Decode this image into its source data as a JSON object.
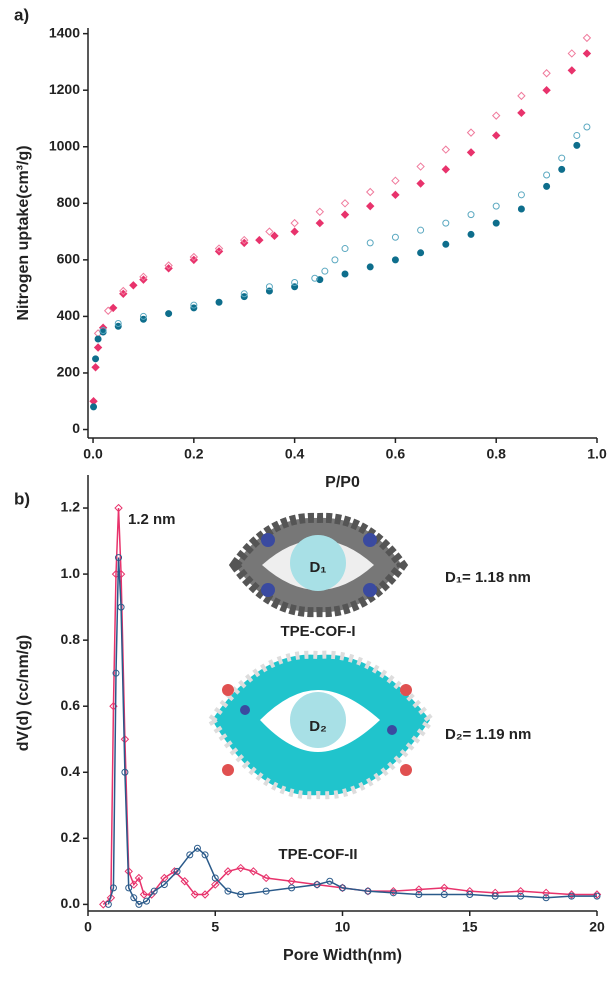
{
  "chart_data": [
    {
      "type": "scatter",
      "panel_label": "a)",
      "xlabel": "P/P0",
      "ylabel": "Nitrogen uptake(cm³/g)",
      "xlim": [
        -0.01,
        1.0
      ],
      "ylim": [
        -30,
        1420
      ],
      "xticks": [
        {
          "value": 0,
          "label": "0.0"
        },
        0.2,
        0.4,
        0.6,
        0.8,
        {
          "value": 1,
          "label": "1.0"
        }
      ],
      "yticks": [
        0,
        200,
        400,
        600,
        800,
        1000,
        1200,
        1400
      ],
      "series": [
        {
          "color": "#e8336c",
          "marker": "diamond",
          "filled": true,
          "x": [
            0.001,
            0.005,
            0.01,
            0.02,
            0.04,
            0.06,
            0.08,
            0.1,
            0.15,
            0.2,
            0.25,
            0.3,
            0.33,
            0.36,
            0.4,
            0.45,
            0.5,
            0.55,
            0.6,
            0.65,
            0.7,
            0.75,
            0.8,
            0.85,
            0.9,
            0.95,
            0.98
          ],
          "values": [
            100,
            220,
            290,
            360,
            430,
            480,
            510,
            530,
            570,
            600,
            630,
            660,
            670,
            685,
            700,
            730,
            760,
            790,
            830,
            870,
            920,
            980,
            1040,
            1120,
            1200,
            1270,
            1330
          ]
        },
        {
          "color": "#f07a9c",
          "marker": "diamond",
          "filled": false,
          "x": [
            0.01,
            0.03,
            0.06,
            0.1,
            0.15,
            0.2,
            0.25,
            0.3,
            0.35,
            0.4,
            0.45,
            0.5,
            0.55,
            0.6,
            0.65,
            0.7,
            0.75,
            0.8,
            0.85,
            0.9,
            0.95,
            0.98
          ],
          "values": [
            340,
            420,
            490,
            540,
            580,
            610,
            640,
            670,
            700,
            730,
            770,
            800,
            840,
            880,
            930,
            990,
            1050,
            1110,
            1180,
            1260,
            1330,
            1385
          ]
        },
        {
          "color": "#0e6e8c",
          "marker": "circle",
          "filled": true,
          "x": [
            0.001,
            0.005,
            0.01,
            0.02,
            0.05,
            0.1,
            0.15,
            0.2,
            0.25,
            0.3,
            0.35,
            0.4,
            0.45,
            0.5,
            0.55,
            0.6,
            0.65,
            0.7,
            0.75,
            0.8,
            0.85,
            0.9,
            0.93,
            0.96
          ],
          "values": [
            80,
            250,
            320,
            345,
            365,
            390,
            410,
            430,
            450,
            470,
            490,
            505,
            530,
            550,
            575,
            600,
            625,
            655,
            690,
            730,
            780,
            860,
            920,
            1005
          ]
        },
        {
          "color": "#5aa8c0",
          "marker": "circle",
          "filled": false,
          "x": [
            0.02,
            0.05,
            0.1,
            0.2,
            0.3,
            0.35,
            0.4,
            0.44,
            0.46,
            0.48,
            0.5,
            0.55,
            0.6,
            0.65,
            0.7,
            0.75,
            0.8,
            0.85,
            0.9,
            0.93,
            0.96,
            0.98
          ],
          "values": [
            350,
            375,
            400,
            440,
            480,
            505,
            520,
            535,
            560,
            600,
            640,
            660,
            680,
            705,
            730,
            760,
            790,
            830,
            900,
            960,
            1040,
            1070
          ]
        }
      ]
    },
    {
      "type": "line",
      "panel_label": "b)",
      "xlabel": "Pore Width(nm)",
      "ylabel": "dV(d) (cc/nm/g)",
      "xlim": [
        0,
        20
      ],
      "ylim": [
        -0.02,
        1.3
      ],
      "xticks": [
        0,
        5,
        10,
        15,
        20
      ],
      "yticks": [
        {
          "value": 0,
          "label": "0.0"
        },
        0.2,
        0.4,
        0.6,
        0.8,
        {
          "value": 1,
          "label": "1.0"
        },
        1.2
      ],
      "annotations": [
        "1.2 nm",
        "D₁",
        "D₁= 1.18 nm",
        "TPE-COF-I",
        "D₂",
        "D₂= 1.19 nm",
        "TPE-COF-II"
      ],
      "series": [
        {
          "color": "#e8336c",
          "marker": "diamond",
          "filled": false,
          "x": [
            0.6,
            0.9,
            1.0,
            1.1,
            1.2,
            1.3,
            1.45,
            1.6,
            1.8,
            2.0,
            2.2,
            2.5,
            3.0,
            3.4,
            3.8,
            4.2,
            4.6,
            5.0,
            5.5,
            6.0,
            6.5,
            7,
            8,
            9,
            10,
            11,
            12,
            13,
            14,
            15,
            16,
            17,
            18,
            19,
            20
          ],
          "values": [
            0,
            0.02,
            0.6,
            1.0,
            1.2,
            1.0,
            0.5,
            0.1,
            0.06,
            0.08,
            0.03,
            0.03,
            0.08,
            0.1,
            0.07,
            0.03,
            0.03,
            0.06,
            0.1,
            0.11,
            0.1,
            0.08,
            0.07,
            0.06,
            0.05,
            0.04,
            0.04,
            0.045,
            0.05,
            0.04,
            0.035,
            0.04,
            0.035,
            0.03,
            0.03
          ]
        },
        {
          "color": "#2a5a8a",
          "marker": "circle",
          "filled": false,
          "x": [
            0.8,
            1.0,
            1.1,
            1.2,
            1.3,
            1.45,
            1.6,
            1.8,
            2.0,
            2.3,
            2.6,
            3.0,
            3.5,
            4.0,
            4.3,
            4.6,
            5.0,
            5.5,
            6,
            7,
            8,
            9,
            9.5,
            10,
            11,
            12,
            13,
            14,
            15,
            16,
            17,
            18,
            19,
            20
          ],
          "values": [
            0,
            0.05,
            0.7,
            1.05,
            0.9,
            0.4,
            0.05,
            0.02,
            0.0,
            0.01,
            0.04,
            0.06,
            0.1,
            0.15,
            0.17,
            0.15,
            0.08,
            0.04,
            0.03,
            0.04,
            0.05,
            0.06,
            0.07,
            0.05,
            0.04,
            0.035,
            0.03,
            0.03,
            0.03,
            0.025,
            0.025,
            0.02,
            0.025,
            0.025
          ]
        }
      ]
    }
  ]
}
